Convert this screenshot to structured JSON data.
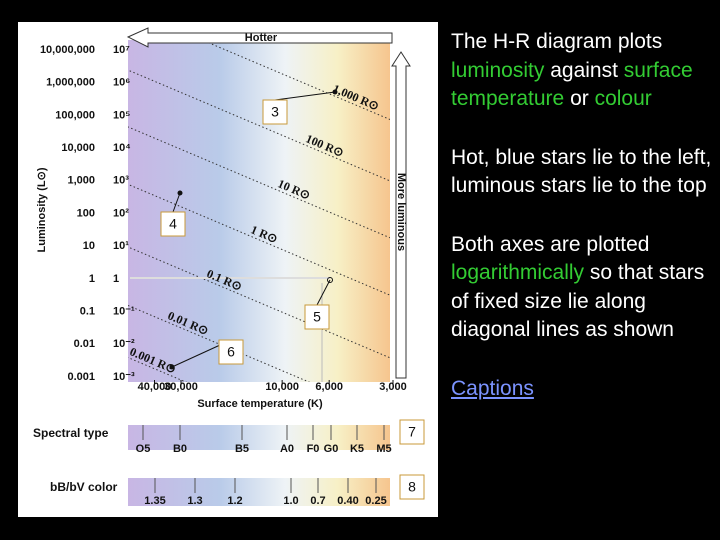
{
  "diagram": {
    "top_arrow": "Hotter",
    "right_arrow": "More luminous",
    "y_axis_title": "Luminosity (L⊙)",
    "y_labels": [
      [
        "10,000,000",
        "10⁷"
      ],
      [
        "1,000,000",
        "10⁶"
      ],
      [
        "100,000",
        "10⁵"
      ],
      [
        "10,000",
        "10⁴"
      ],
      [
        "1,000",
        "10³"
      ],
      [
        "100",
        "10²"
      ],
      [
        "10",
        "10¹"
      ],
      [
        "1",
        "1"
      ],
      [
        "0.1",
        "10⁻¹"
      ],
      [
        "0.01",
        "10⁻²"
      ],
      [
        "0.001",
        "10⁻³"
      ]
    ],
    "radius_lines": [
      "1,000 R⊙",
      "100 R⊙",
      "10 R⊙",
      "1 R⊙",
      "0.1 R⊙",
      "0.01 R⊙",
      "0.001 R⊙"
    ],
    "x_ticks": [
      {
        "value": 40000,
        "label": "40,000"
      },
      {
        "value": 30000,
        "label": "30,000"
      },
      {
        "value": 10000,
        "label": "10,000"
      },
      {
        "value": 6000,
        "label": "6,000"
      },
      {
        "value": 3000,
        "label": "3,000"
      }
    ],
    "x_axis_title": "Surface temperature (K)",
    "spectral_title": "Spectral type",
    "spectral_labels": [
      "O5",
      "B0",
      "B5",
      "A0",
      "F0",
      "G0",
      "K5",
      "M5"
    ],
    "color_title": "bB/bV color",
    "color_labels": [
      "1.35",
      "1.3",
      "1.2",
      "1.0",
      "0.7",
      "0.40",
      "0.25"
    ],
    "boxes": [
      "3",
      "4",
      "5",
      "6",
      "7",
      "8"
    ]
  },
  "text": {
    "paragraphs": [
      [
        {
          "text": "The H-R diagram plots "
        },
        {
          "text": "luminosity",
          "emphasis": true
        },
        {
          "text": " against "
        },
        {
          "text": "surface temperature",
          "emphasis": true
        },
        {
          "text": " or "
        },
        {
          "text": "colour",
          "emphasis": true
        }
      ],
      [
        {
          "text": "Hot, blue stars lie to the left, luminous stars lie to the top"
        }
      ],
      [
        {
          "text": "Both axes are plotted "
        },
        {
          "text": "logarithmically",
          "emphasis": true
        },
        {
          "text": " so that stars of fixed size lie along diagonal lines as shown"
        }
      ]
    ],
    "link": "Captions"
  }
}
